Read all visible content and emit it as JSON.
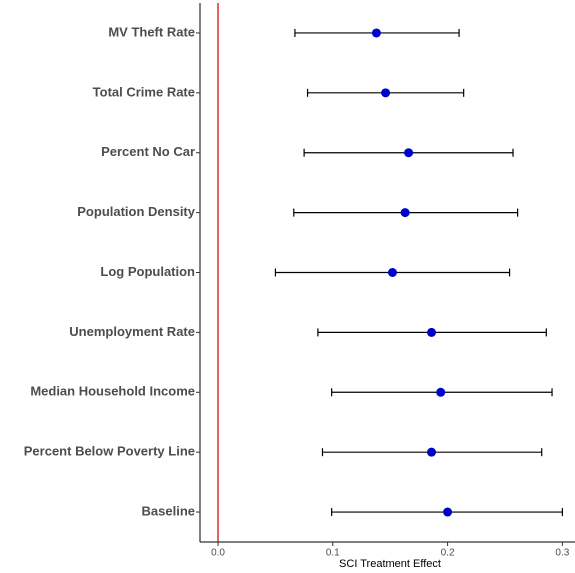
{
  "chart_data": {
    "type": "errorbar",
    "x_label": "SCI Treatment Effect",
    "categories": [
      "MV Theft Rate",
      "Total Crime Rate",
      "Percent No Car",
      "Population Density",
      "Log Population",
      "Unemployment Rate",
      "Median Household Income",
      "Percent Below Poverty Line",
      "Baseline"
    ],
    "values": [
      0.138,
      0.146,
      0.166,
      0.163,
      0.152,
      0.186,
      0.194,
      0.186,
      0.2
    ],
    "lower": [
      0.067,
      0.078,
      0.075,
      0.066,
      0.05,
      0.087,
      0.099,
      0.091,
      0.099
    ],
    "upper": [
      0.21,
      0.214,
      0.257,
      0.261,
      0.254,
      0.286,
      0.291,
      0.282,
      0.3
    ],
    "color": "#0000cc",
    "reference_line": {
      "x": 0,
      "color": "#cc0000"
    },
    "xlim": [
      -0.0157,
      0.311
    ],
    "xticks": [
      {
        "value": 0,
        "label": "0.0"
      },
      0.1,
      0.2,
      0.3
    ]
  }
}
